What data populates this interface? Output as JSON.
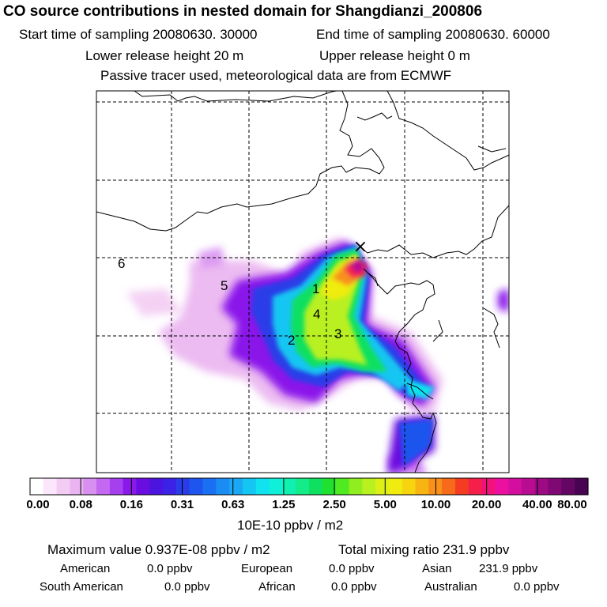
{
  "header": {
    "title": "CO  source contributions in nested domain for Shangdianzi_200806",
    "start_time": "Start time of sampling 20080630. 30000",
    "end_time": "End time of sampling 20080630. 60000",
    "lower_release": "Lower release height   20 m",
    "upper_release": "Upper release height    0 m",
    "tracer_note": "Passive tracer used, meteorological data are from ECMWF"
  },
  "map": {
    "region_labels": [
      "1",
      "2",
      "3",
      "4",
      "5",
      "6"
    ],
    "receptor_marker": "×",
    "grid": "dashed"
  },
  "colorbar": {
    "tick_labels": [
      "0.00",
      "0.08",
      "0.16",
      "0.31",
      "0.63",
      "1.25",
      "2.50",
      "5.00",
      "10.00",
      "20.00",
      "40.00",
      "80.00"
    ],
    "colors": [
      "#ffffff",
      "#fbe6fb",
      "#f3ccf3",
      "#eab4f0",
      "#d890f0",
      "#c468f2",
      "#a640ef",
      "#8a18ea",
      "#6a0de0",
      "#4c14df",
      "#3a22e6",
      "#2a3ce8",
      "#1e55ee",
      "#1a70f2",
      "#1a8cf4",
      "#1aa8f4",
      "#14c6f2",
      "#10e2f0",
      "#10f0d8",
      "#10f0b0",
      "#14ec8a",
      "#10e060",
      "#20e030",
      "#50ea20",
      "#90ee20",
      "#b8f020",
      "#dcf018",
      "#f0ec10",
      "#f6d410",
      "#f8b410",
      "#f8901a",
      "#f66a1a",
      "#f43c22",
      "#f4204a",
      "#f4127a",
      "#ec10a0",
      "#d40e9e",
      "#b80c92",
      "#9c0a84",
      "#800874",
      "#640664",
      "#480452"
    ],
    "unit": "10E-10 ppbv / m2"
  },
  "stats": {
    "maximum": "Maximum value  0.937E-08 ppbv / m2",
    "total": "Total mixing ratio     231.9 ppbv",
    "contributions": [
      {
        "label": "American",
        "value": "0.0 ppbv"
      },
      {
        "label": "European",
        "value": "0.0 ppbv"
      },
      {
        "label": "Asian",
        "value": "231.9 ppbv"
      },
      {
        "label": "South American",
        "value": "0.0 ppbv"
      },
      {
        "label": "African",
        "value": "0.0 ppbv"
      },
      {
        "label": "Australian",
        "value": "0.0 ppbv"
      }
    ]
  }
}
